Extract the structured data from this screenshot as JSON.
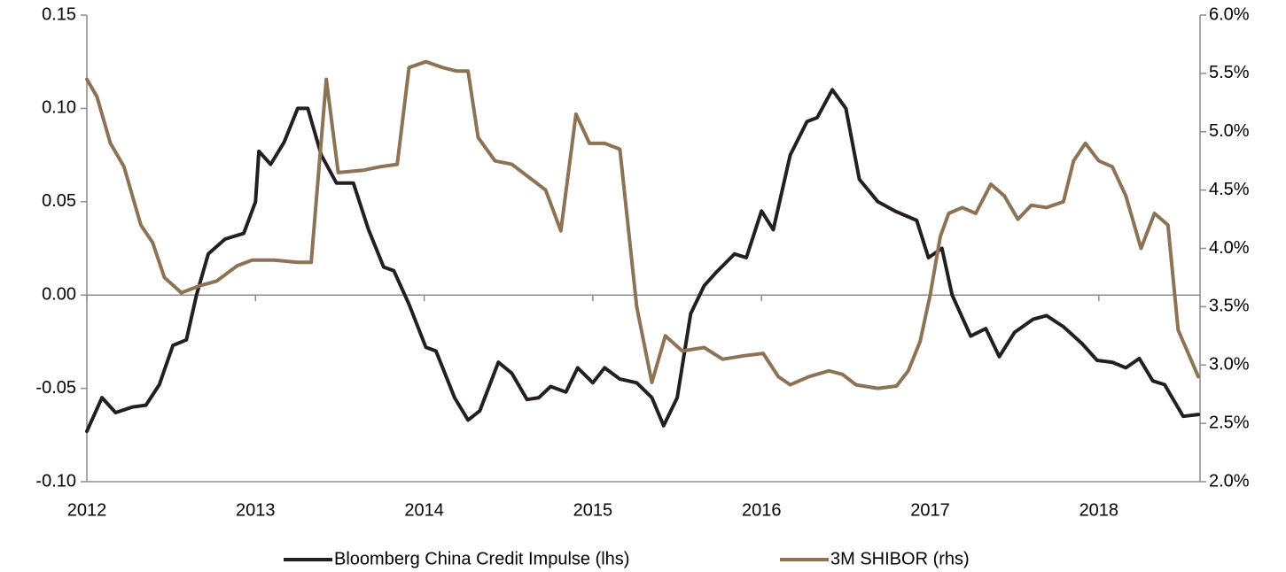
{
  "chart_data": {
    "type": "line",
    "xlim": [
      2012,
      2018.6
    ],
    "xticks": [
      2012,
      2013,
      2014,
      2015,
      2016,
      2017,
      2018
    ],
    "ylim": [
      -0.1,
      0.15
    ],
    "yticks": [
      {
        "value": -0.1,
        "label": "-0.10"
      },
      -0.05,
      {
        "value": 0,
        "label": "0.00"
      },
      0.05,
      {
        "value": 0.1,
        "label": "0.10"
      },
      0.15
    ],
    "y2lim": [
      2,
      6
    ],
    "y2ticks": [
      {
        "value": 2,
        "label": "2.0%"
      },
      {
        "value": 2.5,
        "label": "2.5%"
      },
      {
        "value": 3,
        "label": "3.0%"
      },
      {
        "value": 3.5,
        "label": "3.5%"
      },
      {
        "value": 4,
        "label": "4.0%"
      },
      {
        "value": 4.5,
        "label": "4.5%"
      },
      {
        "value": 5,
        "label": "5.0%"
      },
      {
        "value": 5.5,
        "label": "5.5%"
      },
      {
        "value": 6,
        "label": "6.0%"
      }
    ],
    "series": [
      {
        "name": "Bloomberg China Credit Impulse (lhs)",
        "color": "#231f20",
        "axis": "y",
        "x": [
          2012.0,
          2012.09,
          2012.17,
          2012.27,
          2012.35,
          2012.43,
          2012.51,
          2012.59,
          2012.65,
          2012.72,
          2012.82,
          2012.93,
          2013.0,
          2013.02,
          2013.09,
          2013.17,
          2013.25,
          2013.31,
          2013.39,
          2013.48,
          2013.58,
          2013.67,
          2013.76,
          2013.82,
          2013.91,
          2014.01,
          2014.07,
          2014.18,
          2014.26,
          2014.33,
          2014.44,
          2014.52,
          2014.61,
          2014.68,
          2014.75,
          2014.84,
          2014.91,
          2015.0,
          2015.07,
          2015.16,
          2015.26,
          2015.35,
          2015.42,
          2015.5,
          2015.58,
          2015.66,
          2015.73,
          2015.84,
          2015.91,
          2016.0,
          2016.07,
          2016.17,
          2016.27,
          2016.33,
          2016.42,
          2016.5,
          2016.58,
          2016.69,
          2016.79,
          2016.92,
          2016.99,
          2017.07,
          2017.13,
          2017.24,
          2017.33,
          2017.41,
          2017.5,
          2017.61,
          2017.69,
          2017.79,
          2017.9,
          2017.99,
          2018.08,
          2018.16,
          2018.24,
          2018.32,
          2018.39,
          2018.5,
          2018.59
        ],
        "values": [
          -0.073,
          -0.055,
          -0.063,
          -0.06,
          -0.059,
          -0.048,
          -0.027,
          -0.024,
          0.0,
          0.022,
          0.03,
          0.033,
          0.05,
          0.077,
          0.07,
          0.082,
          0.1,
          0.1,
          0.075,
          0.06,
          0.06,
          0.035,
          0.015,
          0.013,
          -0.005,
          -0.028,
          -0.03,
          -0.055,
          -0.067,
          -0.062,
          -0.036,
          -0.042,
          -0.056,
          -0.055,
          -0.049,
          -0.052,
          -0.039,
          -0.047,
          -0.039,
          -0.045,
          -0.047,
          -0.055,
          -0.07,
          -0.055,
          -0.01,
          0.005,
          0.012,
          0.022,
          0.02,
          0.045,
          0.035,
          0.075,
          0.093,
          0.095,
          0.11,
          0.1,
          0.062,
          0.05,
          0.045,
          0.04,
          0.02,
          0.025,
          0.0,
          -0.022,
          -0.018,
          -0.033,
          -0.02,
          -0.013,
          -0.011,
          -0.017,
          -0.026,
          -0.035,
          -0.036,
          -0.039,
          -0.034,
          -0.046,
          -0.048,
          -0.065,
          -0.064
        ]
      },
      {
        "name": "3M SHIBOR (rhs)",
        "color": "#8c7356",
        "axis": "y2",
        "x": [
          2012.0,
          2012.06,
          2012.14,
          2012.22,
          2012.32,
          2012.39,
          2012.46,
          2012.56,
          2012.67,
          2012.77,
          2012.89,
          2012.98,
          2013.11,
          2013.25,
          2013.33,
          2013.42,
          2013.49,
          2013.64,
          2013.74,
          2013.84,
          2013.91,
          2014.01,
          2014.11,
          2014.19,
          2014.26,
          2014.32,
          2014.42,
          2014.52,
          2014.63,
          2014.72,
          2014.81,
          2014.9,
          2014.98,
          2015.07,
          2015.16,
          2015.26,
          2015.35,
          2015.43,
          2015.53,
          2015.66,
          2015.77,
          2015.9,
          2016.01,
          2016.1,
          2016.17,
          2016.28,
          2016.4,
          2016.48,
          2016.56,
          2016.69,
          2016.8,
          2016.87,
          2016.94,
          2017.0,
          2017.06,
          2017.11,
          2017.19,
          2017.27,
          2017.36,
          2017.44,
          2017.52,
          2017.6,
          2017.69,
          2017.79,
          2017.85,
          2017.92,
          2018.0,
          2018.08,
          2018.16,
          2018.25,
          2018.33,
          2018.41,
          2018.47,
          2018.59
        ],
        "values": [
          5.45,
          5.3,
          4.9,
          4.7,
          4.2,
          4.05,
          3.75,
          3.62,
          3.68,
          3.72,
          3.85,
          3.9,
          3.9,
          3.88,
          3.88,
          5.45,
          4.65,
          4.67,
          4.7,
          4.72,
          5.55,
          5.6,
          5.55,
          5.52,
          5.52,
          4.95,
          4.75,
          4.72,
          4.6,
          4.5,
          4.15,
          5.15,
          4.9,
          4.9,
          4.85,
          3.5,
          2.85,
          3.25,
          3.12,
          3.15,
          3.05,
          3.08,
          3.1,
          2.9,
          2.83,
          2.9,
          2.95,
          2.92,
          2.83,
          2.8,
          2.82,
          2.95,
          3.2,
          3.6,
          4.1,
          4.3,
          4.35,
          4.3,
          4.55,
          4.45,
          4.25,
          4.37,
          4.35,
          4.4,
          4.75,
          4.9,
          4.75,
          4.7,
          4.45,
          4.0,
          4.3,
          4.2,
          3.3,
          2.9
        ]
      }
    ],
    "legend": "bottom"
  }
}
